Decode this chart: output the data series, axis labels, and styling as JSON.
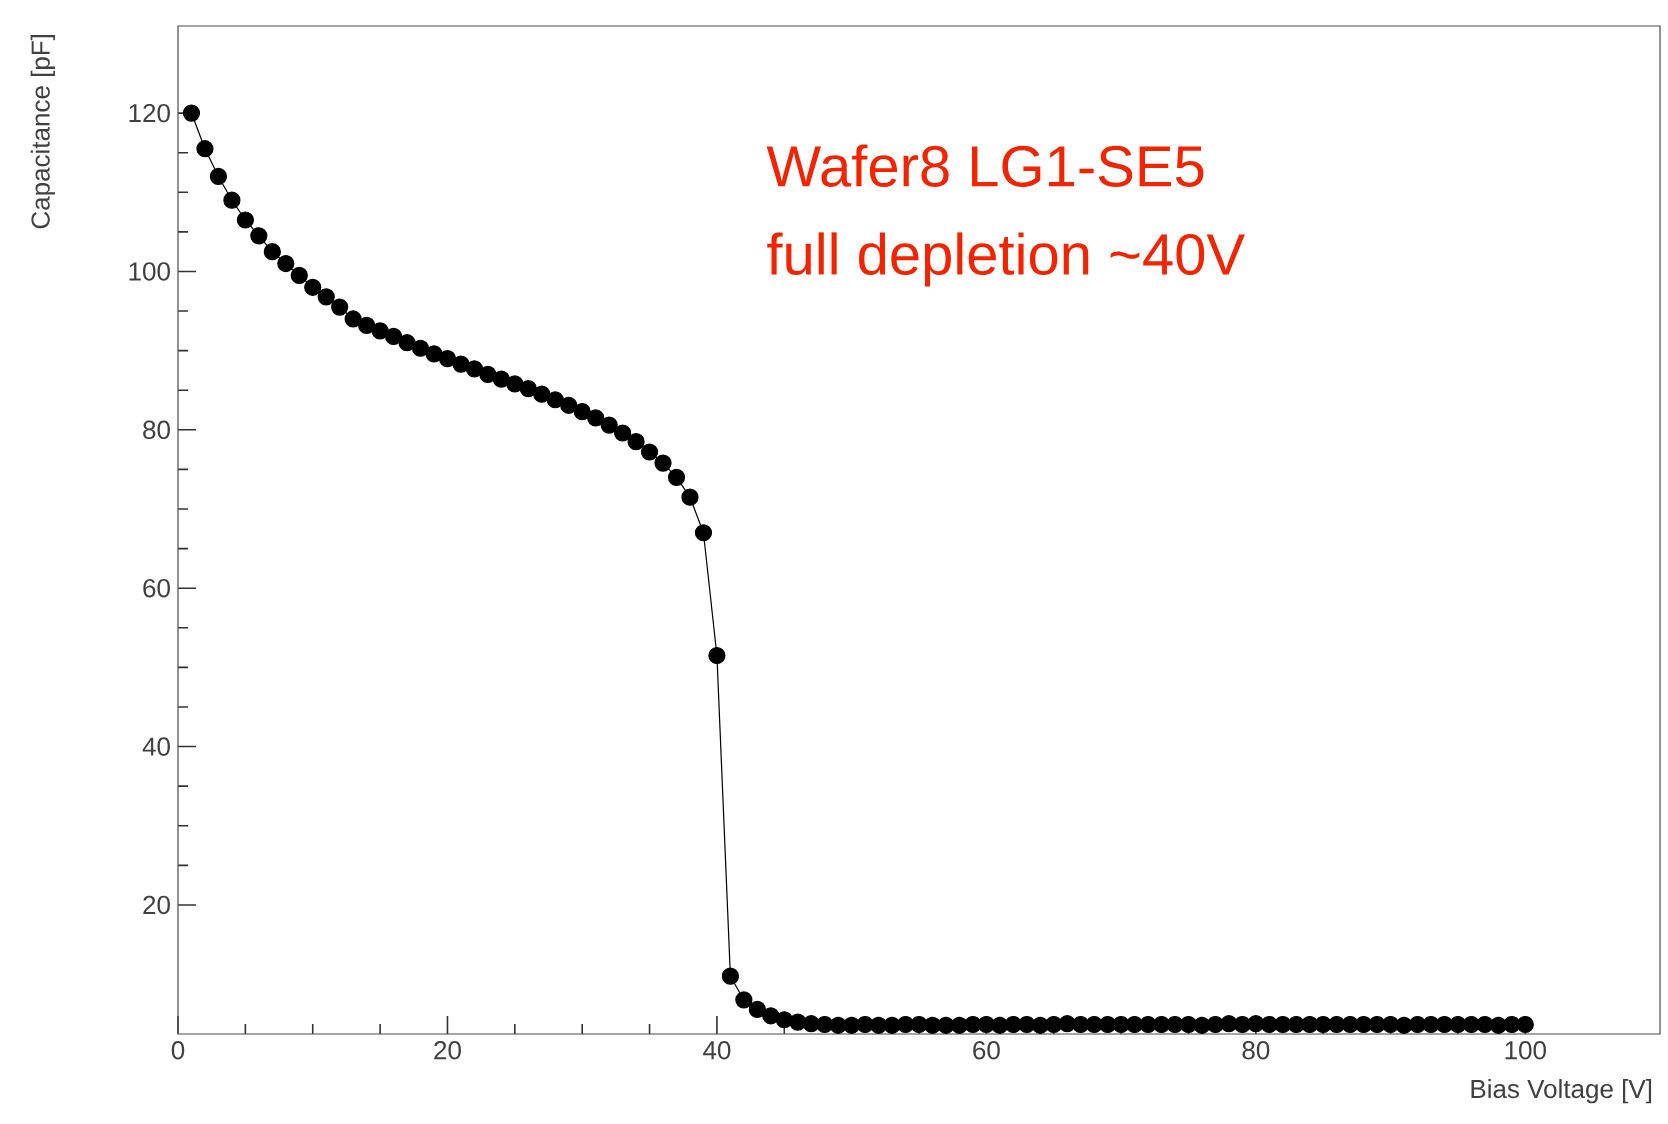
{
  "chart_data": {
    "type": "line",
    "xlabel": "Bias Voltage [V]",
    "ylabel": "Capacitance [pF]",
    "annotations": [
      "Wafer8 LG1-SE5",
      "full depletion ~40V"
    ],
    "x": [
      1,
      2,
      3,
      4,
      5,
      6,
      7,
      8,
      9,
      10,
      11,
      12,
      13,
      14,
      15,
      16,
      17,
      18,
      19,
      20,
      21,
      22,
      23,
      24,
      25,
      26,
      27,
      28,
      29,
      30,
      31,
      32,
      33,
      34,
      35,
      36,
      37,
      38,
      39,
      40,
      41,
      42,
      43,
      44,
      45,
      46,
      47,
      48,
      49,
      50,
      51,
      52,
      53,
      54,
      55,
      56,
      57,
      58,
      59,
      60,
      61,
      62,
      63,
      64,
      65,
      66,
      67,
      68,
      69,
      70,
      71,
      72,
      73,
      74,
      75,
      76,
      77,
      78,
      79,
      80,
      81,
      82,
      83,
      84,
      85,
      86,
      87,
      88,
      89,
      90,
      91,
      92,
      93,
      94,
      95,
      96,
      97,
      98,
      99,
      100
    ],
    "series": [
      {
        "color": "#000000",
        "values": [
          120,
          115.5,
          112,
          109,
          106.5,
          104.5,
          102.5,
          101,
          99.5,
          98,
          96.8,
          95.5,
          94,
          93.2,
          92.5,
          91.8,
          91,
          90.3,
          89.6,
          89,
          88.3,
          87.7,
          87,
          86.4,
          85.8,
          85.2,
          84.5,
          83.8,
          83.1,
          82.3,
          81.5,
          80.6,
          79.6,
          78.5,
          77.2,
          75.8,
          74,
          71.5,
          67,
          51.5,
          11,
          8,
          6.8,
          6,
          5.5,
          5.2,
          5,
          4.9,
          4.8,
          4.8,
          4.9,
          4.8,
          4.8,
          4.9,
          4.9,
          4.8,
          4.8,
          4.8,
          4.9,
          4.9,
          4.8,
          4.9,
          4.9,
          4.8,
          4.9,
          5,
          4.9,
          4.9,
          4.9,
          4.9,
          4.9,
          4.9,
          4.9,
          4.9,
          4.9,
          4.8,
          4.9,
          5,
          4.9,
          5,
          4.9,
          4.9,
          4.9,
          4.9,
          4.9,
          4.9,
          4.9,
          4.9,
          4.9,
          4.9,
          4.8,
          4.9,
          4.9,
          4.9,
          4.9,
          4.9,
          4.9,
          4.8,
          4.9,
          4.9
        ]
      }
    ],
    "xlim": [
      0,
      110
    ],
    "ylim": [
      3.7,
      131
    ],
    "xticks": [
      0,
      20,
      40,
      60,
      80,
      100
    ],
    "yticks": [
      20,
      40,
      60,
      80,
      100,
      120
    ],
    "grid": false,
    "marker": "circle",
    "line_style": "solid"
  }
}
